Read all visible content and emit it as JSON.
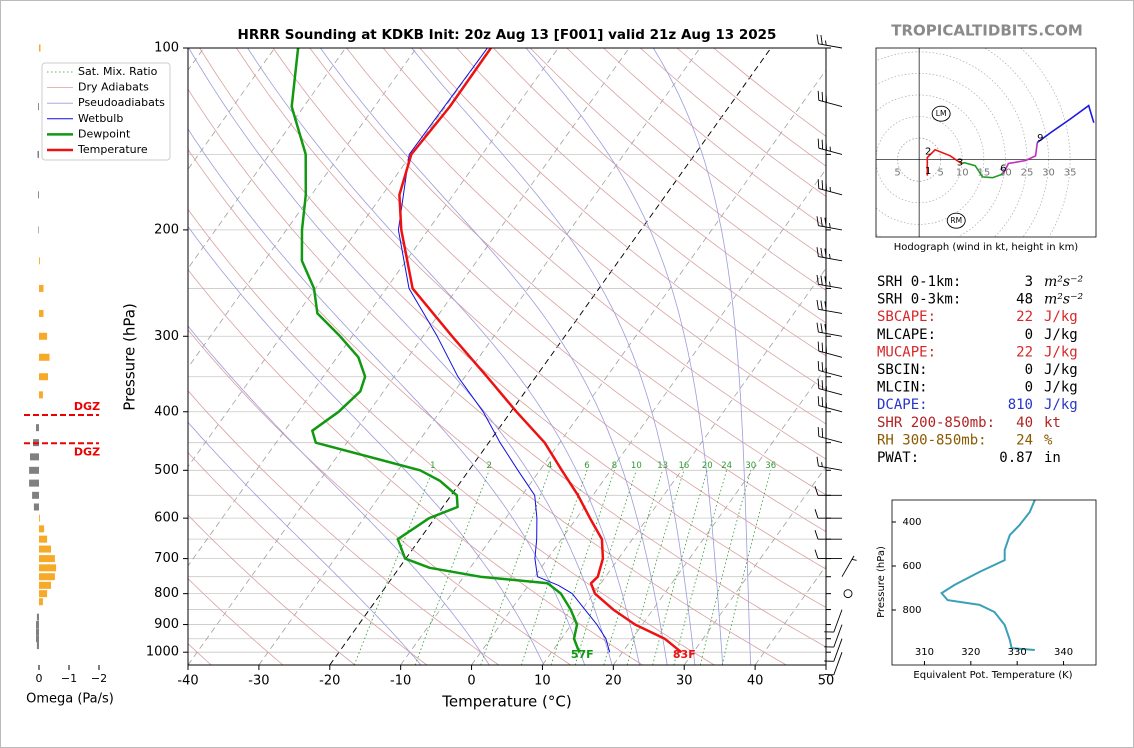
{
  "site_label": "TROPICALTIDBITS.COM",
  "indices": {
    "rows": [
      {
        "label": "SRH 0-1km:",
        "value": 3,
        "unit": "m²s⁻²",
        "color": "#000000"
      },
      {
        "label": "SRH 0-3km:",
        "value": 48,
        "unit": "m²s⁻²",
        "color": "#000000"
      },
      {
        "label": "SBCAPE:",
        "value": 22,
        "unit": "J/kg",
        "color": "#d62728"
      },
      {
        "label": "MLCAPE:",
        "value": 0,
        "unit": "J/kg",
        "color": "#000000"
      },
      {
        "label": "MUCAPE:",
        "value": 22,
        "unit": "J/kg",
        "color": "#d62728"
      },
      {
        "label": "SBCIN:",
        "value": 0,
        "unit": "J/kg",
        "color": "#000000"
      },
      {
        "label": "MLCIN:",
        "value": 0,
        "unit": "J/kg",
        "color": "#000000"
      },
      {
        "label": "DCAPE:",
        "value": 810,
        "unit": "J/kg",
        "color": "#2636c8"
      },
      {
        "label": "SHR 200-850mb:",
        "value": 40,
        "unit": "kt",
        "color": "#b22222"
      },
      {
        "label": "RH 300-850mb:",
        "value": 24,
        "unit": "%",
        "color": "#8b5a00"
      },
      {
        "label": "PWAT:",
        "value": 0.87,
        "unit": "in",
        "color": "#000000"
      }
    ]
  },
  "chart_data": [
    {
      "type": "skewt",
      "title": "HRRR Sounding at KDKB Init: 20z Aug 13 [F001] valid 21z Aug 13 2025",
      "xlabel": "Temperature (°C)",
      "ylabel": "Pressure (hPa)",
      "xlim": [
        -40,
        50
      ],
      "xticks": [
        -40,
        -30,
        -20,
        -10,
        0,
        10,
        20,
        30,
        40,
        50
      ],
      "ylim": [
        1050,
        100
      ],
      "log_y": true,
      "yticks": [
        100,
        200,
        300,
        400,
        500,
        600,
        700,
        800,
        900,
        1000
      ],
      "ygrid": [
        100,
        150,
        200,
        250,
        300,
        350,
        400,
        450,
        500,
        550,
        600,
        650,
        700,
        750,
        800,
        850,
        900,
        950,
        1000
      ],
      "isotherms": {
        "color": "#a0a0a0",
        "values": [
          -110,
          -100,
          -90,
          -80,
          -70,
          -60,
          -50,
          -40,
          -30,
          -20,
          -10,
          0,
          10,
          20,
          30,
          40,
          50
        ],
        "highlight": {
          "value": -20,
          "color": "#000000"
        }
      },
      "mixing_ratio": {
        "name": "Sat. Mix. Ratio",
        "color": "#2e9a2e",
        "top_pressure": 500,
        "values": [
          1,
          2,
          4,
          6,
          8,
          10,
          13,
          16,
          20,
          24,
          30,
          36
        ]
      },
      "dry_adiabats": {
        "name": "Dry Adiabats",
        "color": "#dca0a0",
        "values": [
          -40,
          -30,
          -20,
          -10,
          0,
          10,
          20,
          30,
          40,
          50,
          60,
          70,
          80,
          90,
          100,
          110,
          120,
          130,
          140,
          150,
          160,
          170,
          180,
          190,
          200
        ]
      },
      "pseudoadiabats": {
        "name": "Pseudoadiabats",
        "color": "#9c9cdc",
        "values": [
          -10,
          0,
          8,
          14,
          18,
          22,
          26,
          30,
          34,
          38
        ]
      },
      "series": [
        {
          "name": "Wetbulb",
          "color": "#1010e0",
          "width": 1,
          "pressure": [
            1000,
            950,
            900,
            850,
            800,
            775,
            750,
            700,
            650,
            600,
            550,
            500,
            450,
            400,
            350,
            300,
            250,
            200,
            150,
            100
          ],
          "values": [
            18.2,
            16.3,
            13.6,
            10.4,
            7,
            4.2,
            0.4,
            -1.8,
            -3.5,
            -5.6,
            -8.2,
            -13.1,
            -18.4,
            -23.9,
            -31,
            -38,
            -46.8,
            -54.2,
            -60.3,
            -60
          ]
        },
        {
          "name": "Dewpoint",
          "color": "#119911",
          "width": 2.5,
          "pressure": [
            1000,
            950,
            900,
            850,
            800,
            769,
            750,
            725,
            700,
            650,
            600,
            575,
            550,
            520,
            500,
            450,
            430,
            400,
            370,
            350,
            325,
            300,
            275,
            250,
            225,
            200,
            175,
            150,
            125,
            100
          ],
          "values": [
            13.9,
            11.8,
            10.8,
            8.4,
            5.4,
            2.5,
            -7.7,
            -15.7,
            -20.1,
            -23.1,
            -20.8,
            -17.9,
            -19.2,
            -23.1,
            -26.9,
            -44.4,
            -46.1,
            -44.3,
            -43.3,
            -44.1,
            -47,
            -51.7,
            -57.2,
            -60.2,
            -64.7,
            -67.8,
            -70.8,
            -74.9,
            -81.7,
            -86.7
          ]
        },
        {
          "name": "Temperature",
          "color": "#ee1111",
          "width": 2.5,
          "pressure": [
            1000,
            950,
            900,
            850,
            800,
            769,
            750,
            700,
            650,
            600,
            550,
            500,
            450,
            400,
            350,
            300,
            250,
            200,
            175,
            150,
            125,
            100
          ],
          "values": [
            28.3,
            24.6,
            19,
            14.4,
            10.2,
            8.6,
            8.9,
            7.8,
            5.7,
            1.9,
            -2.1,
            -6.9,
            -12.1,
            -19.2,
            -26.9,
            -35.9,
            -46.3,
            -53.8,
            -57.6,
            -60,
            -59.4,
            -59.5
          ]
        }
      ],
      "surface_labels": {
        "dewpoint": "57F",
        "temperature": "83F"
      },
      "wind_barbs": {
        "pressure": [
          100,
          125,
          150,
          175,
          200,
          225,
          250,
          275,
          300,
          325,
          350,
          375,
          400,
          450,
          500,
          550,
          600,
          650,
          700,
          750,
          800,
          850,
          900,
          950,
          1000
        ],
        "speed": [
          25,
          30,
          35,
          35,
          35,
          35,
          35,
          30,
          30,
          30,
          25,
          25,
          25,
          20,
          15,
          10,
          10,
          10,
          10,
          5,
          0,
          10,
          10,
          10,
          10
        ],
        "direction": [
          280,
          285,
          285,
          285,
          280,
          280,
          280,
          280,
          280,
          285,
          285,
          285,
          285,
          285,
          280,
          270,
          270,
          270,
          270,
          30,
          0,
          200,
          200,
          200,
          200
        ]
      }
    },
    {
      "type": "omega",
      "xlabel": "Omega (Pa/s)",
      "xlim": [
        0.5,
        -2
      ],
      "xticks": [
        0,
        {
          "value": -1,
          "label": "−1"
        },
        {
          "value": -2,
          "label": "−2"
        }
      ],
      "ylim": [
        1050,
        100
      ],
      "pressure": [
        100,
        125,
        150,
        175,
        200,
        225,
        250,
        275,
        300,
        325,
        350,
        375,
        425,
        450,
        475,
        500,
        525,
        550,
        575,
        600,
        625,
        650,
        675,
        700,
        725,
        750,
        775,
        800,
        825,
        875,
        900,
        925,
        950,
        975
      ],
      "values": [
        -0.05,
        0.03,
        0.05,
        0.03,
        0.02,
        -0.03,
        -0.15,
        -0.15,
        -0.27,
        -0.35,
        -0.3,
        -0.13,
        0.1,
        0.2,
        0.3,
        0.33,
        0.33,
        0.23,
        0.17,
        -0.03,
        -0.17,
        -0.27,
        -0.4,
        -0.53,
        -0.57,
        -0.53,
        -0.4,
        -0.27,
        -0.13,
        0.07,
        0.1,
        0.1,
        0.1,
        0.07
      ],
      "colors": {
        "ascent": "#f7a928",
        "descent": "#808080"
      },
      "dgz": {
        "label": "DGZ",
        "pressure": [
          405,
          451
        ],
        "color": "#ee0000"
      }
    },
    {
      "type": "hodograph",
      "caption": "Hodograph (wind in kt, height in km)",
      "xlim": [
        -10,
        41
      ],
      "ylim": [
        -18,
        26
      ],
      "xticks": [
        {
          "value": -5,
          "label": "5"
        },
        5,
        10,
        15,
        20,
        25,
        30,
        35
      ],
      "series": [
        {
          "color": "#ee1111",
          "u": [
            1.9,
            1.9,
            1.9,
            3.7,
            7.2,
            9.8
          ],
          "v": [
            -3.7,
            -1.4,
            0.5,
            2.3,
            0.9,
            -0.9
          ]
        },
        {
          "color": "#22992a",
          "u": [
            9.8,
            10.5,
            13,
            14.7,
            17,
            19.5
          ],
          "v": [
            -0.9,
            -0.7,
            -1.4,
            -4,
            -4.2,
            -3.3
          ]
        },
        {
          "color": "#c22ec2",
          "u": [
            19.5,
            20.7,
            24.7,
            27,
            27.4
          ],
          "v": [
            -3.3,
            -0.9,
            -0.2,
            0.9,
            4
          ]
        },
        {
          "color": "#1a1ae0",
          "u": [
            27.4,
            30.5,
            35.1,
            39.3,
            40.5
          ],
          "v": [
            4,
            6.3,
            9.5,
            12.6,
            8.6
          ]
        }
      ],
      "height_labels": {
        "values": [
          1,
          2,
          3,
          6,
          9
        ],
        "u": [
          2.1,
          2.1,
          9.5,
          19.5,
          28.1
        ],
        "v": [
          -2.6,
          1.9,
          -0.7,
          -2.1,
          5.1
        ]
      },
      "storm_motion": [
        {
          "name": "LM",
          "u": 5.1,
          "v": 10.7
        },
        {
          "name": "RM",
          "u": 8.6,
          "v": -14.2
        }
      ]
    },
    {
      "type": "line",
      "xlabel": "Equivalent Pot. Temperature (K)",
      "ylabel": "Pressure (hPa)",
      "xlim": [
        303,
        347
      ],
      "xticks": [
        310,
        320,
        330,
        340
      ],
      "ylim": [
        1050,
        300
      ],
      "yticks": [
        400,
        600,
        800
      ],
      "series": [
        {
          "color": "#3a9fb8",
          "pressure": [
            300,
            355,
            414,
            459,
            527,
            573,
            627,
            686,
            723,
            755,
            777,
            809,
            868,
            936,
            973,
            982
          ],
          "values": [
            333.8,
            332.7,
            330.5,
            328.4,
            327.3,
            327.3,
            321.9,
            316.5,
            313.7,
            315,
            321.9,
            325.1,
            327.3,
            328.4,
            328.8,
            333.8
          ]
        }
      ]
    }
  ]
}
